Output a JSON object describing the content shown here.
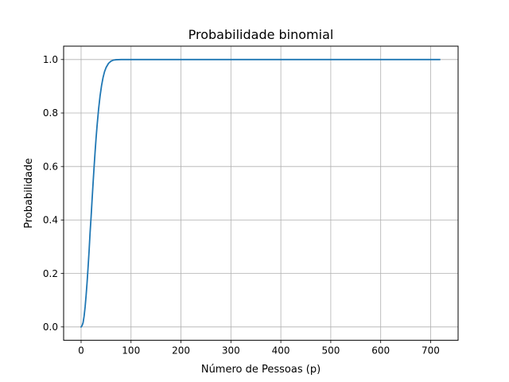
{
  "chart_data": {
    "type": "line",
    "title": "Probabilidade binomial",
    "xlabel": "Número de Pessoas (p)",
    "ylabel": "Probabilidade",
    "xlim": [
      -35,
      755
    ],
    "ylim": [
      -0.05,
      1.05
    ],
    "xticks": [
      0,
      100,
      200,
      300,
      400,
      500,
      600,
      700
    ],
    "yticks": [
      0.0,
      0.2,
      0.4,
      0.6,
      0.8,
      1.0
    ],
    "xtick_labels": [
      "0",
      "100",
      "200",
      "300",
      "400",
      "500",
      "600",
      "700"
    ],
    "ytick_labels": [
      "0.0",
      "0.2",
      "0.4",
      "0.6",
      "0.8",
      "1.0"
    ],
    "grid": true,
    "series": [
      {
        "color": "#1f77b4",
        "x": [
          0,
          2,
          4,
          6,
          8,
          10,
          12,
          14,
          16,
          18,
          20,
          22,
          24,
          26,
          28,
          30,
          32,
          35,
          38,
          41,
          44,
          47,
          50,
          55,
          60,
          65,
          70,
          80,
          100,
          150,
          200,
          300,
          400,
          500,
          600,
          700,
          718
        ],
        "y": [
          0.0,
          0.005,
          0.016,
          0.04,
          0.074,
          0.117,
          0.167,
          0.223,
          0.284,
          0.353,
          0.411,
          0.476,
          0.538,
          0.598,
          0.654,
          0.706,
          0.753,
          0.814,
          0.864,
          0.903,
          0.933,
          0.955,
          0.97,
          0.986,
          0.994,
          0.998,
          0.9992,
          0.9999,
          1.0,
          1.0,
          1.0,
          1.0,
          1.0,
          1.0,
          1.0,
          1.0,
          1.0
        ]
      }
    ]
  }
}
